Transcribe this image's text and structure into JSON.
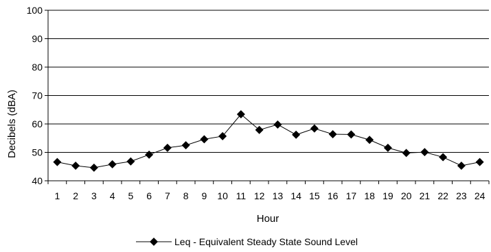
{
  "chart_data": {
    "type": "line",
    "title": "",
    "xlabel": "Hour",
    "ylabel": "Decibels (dBA)",
    "ylim": [
      40,
      100
    ],
    "yticks": [
      40,
      50,
      60,
      70,
      80,
      90,
      100
    ],
    "grid": "horizontal",
    "legend_position": "bottom-center",
    "categories": [
      "1",
      "2",
      "3",
      "4",
      "5",
      "6",
      "7",
      "8",
      "9",
      "10",
      "11",
      "12",
      "13",
      "14",
      "15",
      "16",
      "17",
      "18",
      "19",
      "20",
      "21",
      "22",
      "23",
      "24"
    ],
    "series": [
      {
        "name": "Leq - Equivalent Steady State Sound Level",
        "marker": "diamond",
        "color": "#000000",
        "values": [
          46.6,
          45.3,
          44.6,
          45.8,
          46.8,
          49.2,
          51.6,
          52.5,
          54.6,
          55.7,
          63.4,
          57.9,
          59.8,
          56.2,
          58.4,
          56.4,
          56.3,
          54.4,
          51.6,
          49.8,
          50.1,
          48.3,
          45.3,
          46.6
        ]
      }
    ]
  }
}
